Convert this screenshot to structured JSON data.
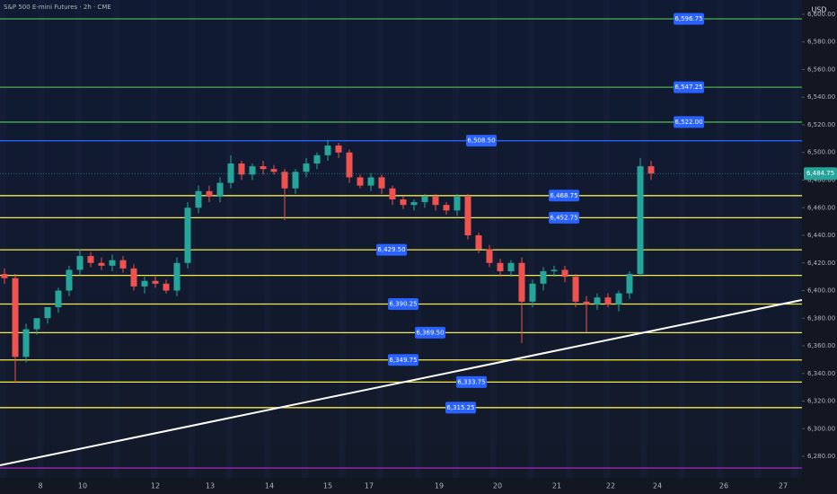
{
  "chart_data": {
    "type": "candlestick",
    "title": "S&P 500 E-mini Futures · 2h · CME",
    "currency": "USD",
    "ylim": [
      6264.4,
      6610.4
    ],
    "yticks": [
      {
        "value": 6280,
        "label": "6,280.00"
      },
      {
        "value": 6300,
        "label": "6,300.00"
      },
      {
        "value": 6320,
        "label": "6,320.00"
      },
      {
        "value": 6340,
        "label": "6,340.00"
      },
      {
        "value": 6360,
        "label": "6,360.00"
      },
      {
        "value": 6380,
        "label": "6,380.00"
      },
      {
        "value": 6400,
        "label": "6,400.00"
      },
      {
        "value": 6420,
        "label": "6,420.00"
      },
      {
        "value": 6440,
        "label": "6,440.00"
      },
      {
        "value": 6460,
        "label": "6,460.00"
      },
      {
        "value": 6480,
        "label": "6,480.00"
      },
      {
        "value": 6500,
        "label": "6,500.00"
      },
      {
        "value": 6520,
        "label": "6,520.00"
      },
      {
        "value": 6540,
        "label": "6,540.00"
      },
      {
        "value": 6560,
        "label": "6,560.00"
      },
      {
        "value": 6580,
        "label": "6,580.00"
      },
      {
        "value": 6600,
        "label": "6,600.00"
      }
    ],
    "x_labels": [
      "8",
      "10",
      "12",
      "13",
      "14",
      "15",
      "17",
      "19",
      "20",
      "21",
      "22",
      "24",
      "26",
      "27"
    ],
    "up_color": "#26a69a",
    "down_color": "#ef5350",
    "series": [
      {
        "open": [
          6412,
          6409,
          6352,
          6372,
          6380,
          6388,
          6400,
          6415,
          6425,
          6420,
          6418,
          6422,
          6416,
          6403,
          6407,
          6405,
          6400,
          6420,
          6460,
          6472,
          6468,
          6478,
          6492,
          6484,
          6490,
          6488,
          6486,
          6474,
          6486,
          6492,
          6498,
          6505,
          6500,
          6482,
          6476,
          6482,
          6474,
          6466,
          6462,
          6464,
          6468,
          6462,
          6458,
          6468,
          6440,
          6430,
          6420,
          6414,
          6420,
          6392,
          6405,
          6414,
          6415,
          6410,
          6392,
          6390,
          6395,
          6390,
          6398,
          6412,
          6490
        ],
        "high": [
          6416,
          6412,
          6376,
          6378,
          6386,
          6402,
          6418,
          6430,
          6428,
          6424,
          6426,
          6425,
          6419,
          6410,
          6410,
          6408,
          6424,
          6464,
          6476,
          6476,
          6482,
          6498,
          6494,
          6492,
          6494,
          6491,
          6488,
          6488,
          6496,
          6500,
          6509,
          6507,
          6502,
          6484,
          6485,
          6484,
          6476,
          6468,
          6466,
          6470,
          6470,
          6464,
          6470,
          6470,
          6442,
          6433,
          6423,
          6422,
          6424,
          6408,
          6417,
          6418,
          6418,
          6412,
          6396,
          6398,
          6398,
          6400,
          6414,
          6496,
          6494
        ],
        "low": [
          6405,
          6333,
          6348,
          6368,
          6376,
          6384,
          6396,
          6411,
          6417,
          6415,
          6414,
          6413,
          6400,
          6398,
          6402,
          6398,
          6396,
          6416,
          6456,
          6464,
          6464,
          6474,
          6480,
          6480,
          6484,
          6484,
          6451,
          6470,
          6482,
          6488,
          6494,
          6496,
          6478,
          6474,
          6472,
          6470,
          6462,
          6459,
          6458,
          6460,
          6458,
          6455,
          6454,
          6437,
          6427,
          6417,
          6410,
          6410,
          6362,
          6388,
          6400,
          6410,
          6406,
          6388,
          6370,
          6386,
          6388,
          6385,
          6394,
          6410,
          6480
        ],
        "close": [
          6409,
          6352,
          6372,
          6380,
          6388,
          6400,
          6415,
          6425,
          6420,
          6418,
          6422,
          6416,
          6403,
          6407,
          6405,
          6400,
          6420,
          6460,
          6472,
          6468,
          6478,
          6492,
          6484,
          6490,
          6488,
          6486,
          6474,
          6486,
          6492,
          6498,
          6505,
          6500,
          6482,
          6476,
          6482,
          6474,
          6466,
          6462,
          6464,
          6468,
          6462,
          6458,
          6468,
          6440,
          6430,
          6420,
          6414,
          6420,
          6392,
          6405,
          6414,
          6415,
          6410,
          6392,
          6390,
          6395,
          6390,
          6398,
          6412,
          6490,
          6484.75
        ]
      }
    ],
    "last_price": 6484.75,
    "last_price_label": "6,484.75",
    "levels": [
      {
        "value": 6596.75,
        "label": "6,596.75",
        "color": "#4caf50"
      },
      {
        "value": 6547.25,
        "label": "6,547.25",
        "color": "#4caf50"
      },
      {
        "value": 6522,
        "label": "6,522.00",
        "color": "#4caf50"
      },
      {
        "value": 6508.5,
        "label": "6,508.50",
        "color": "#2962ff"
      },
      {
        "value": 6468.75,
        "label": "6,468.75",
        "color": "#f5e94d"
      },
      {
        "value": 6452.75,
        "label": "6,452.75",
        "color": "#f5e94d"
      },
      {
        "value": 6429.5,
        "label": "6,429.50",
        "color": "#f5e94d"
      },
      {
        "value": 6411,
        "color": "#f5e94d"
      },
      {
        "value": 6390.25,
        "label": "6,390.25",
        "color": "#f5e94d"
      },
      {
        "value": 6369.5,
        "label": "6,369.50",
        "color": "#f5e94d"
      },
      {
        "value": 6349.75,
        "label": "6,349.75",
        "color": "#f5e94d"
      },
      {
        "value": 6333.75,
        "label": "6,333.75",
        "color": "#f5e94d"
      },
      {
        "value": 6315.25,
        "label": "6,315.25",
        "color": "#f5e94d"
      },
      {
        "value": 6271.5,
        "color": "#9c27b0"
      }
    ],
    "trendline": {
      "start": 6273.5,
      "end": 6393.2,
      "color": "#ffffff"
    }
  }
}
